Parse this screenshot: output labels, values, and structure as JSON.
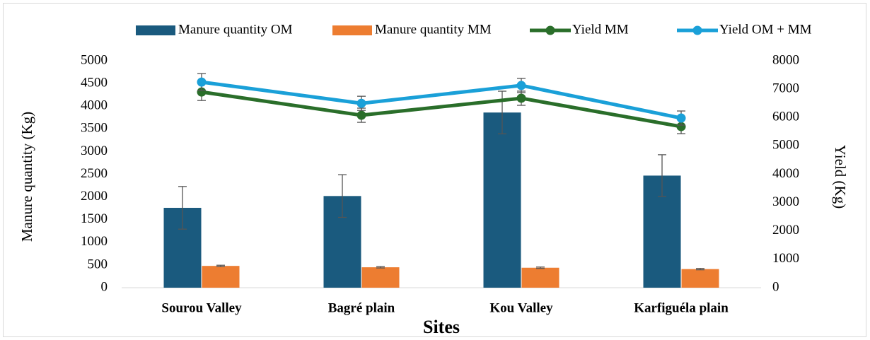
{
  "chart_data": {
    "type": "bar",
    "x_label": "Sites",
    "y_label": "Manure quantity (Kg)",
    "y2_label": "Yield (Kg)",
    "categories": [
      "Sourou Valley",
      "Bagré plain",
      "Kou Valley",
      "Karfiguéla plain"
    ],
    "series": [
      {
        "name": "Manure quantity OM",
        "kind": "bar",
        "color": "#1a5a7e",
        "values": [
          1760,
          2020,
          3860,
          2470
        ],
        "errors": [
          470,
          470,
          470,
          460
        ]
      },
      {
        "name": "Manure quantity MM",
        "kind": "bar",
        "color": "#ed7d31",
        "values": [
          480,
          450,
          440,
          410
        ],
        "errors": [
          15,
          15,
          15,
          15
        ]
      },
      {
        "name": "Yield MM",
        "kind": "line",
        "axis": "y2",
        "color": "#2a6e2a",
        "values": [
          6900,
          6080,
          6680,
          5680
        ],
        "errors": [
          300,
          250,
          250,
          250
        ]
      },
      {
        "name": "Yield OM + MM",
        "kind": "line",
        "axis": "y2",
        "color": "#1aa0d8",
        "values": [
          7250,
          6500,
          7130,
          5980
        ],
        "errors": [
          300,
          250,
          250,
          250
        ]
      }
    ],
    "ylim": [
      0,
      5000
    ],
    "yticks": [
      0,
      500,
      1000,
      1500,
      2000,
      2500,
      3000,
      3500,
      4000,
      4500,
      5000
    ],
    "y2lim": [
      0,
      8000
    ],
    "y2ticks": [
      0,
      1000,
      2000,
      3000,
      4000,
      5000,
      6000,
      7000,
      8000
    ],
    "legend": "top",
    "grid": false
  }
}
